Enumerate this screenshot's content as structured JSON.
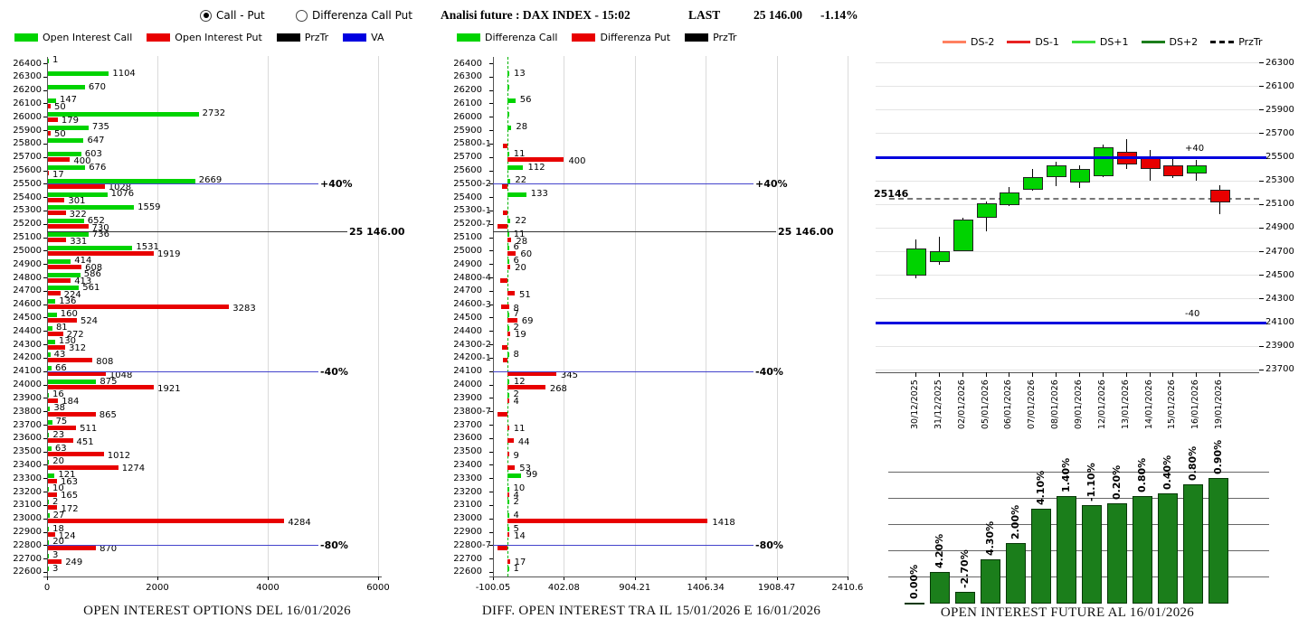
{
  "header": {
    "radio_options": [
      {
        "label": "Call - Put",
        "selected": true
      },
      {
        "label": "Differenza Call Put",
        "selected": false
      }
    ],
    "future_info": {
      "title": "Analisi future : DAX INDEX - 15:02",
      "last_label": "LAST",
      "last_value": "25 146.00",
      "last_change": "-1.14%"
    }
  },
  "legends": {
    "options": [
      {
        "label": "Open Interest Call",
        "color": "#00d300",
        "type": "box"
      },
      {
        "label": "Open Interest Put",
        "color": "#e80000",
        "type": "box"
      },
      {
        "label": "PrzTr",
        "color": "#000000",
        "type": "box"
      },
      {
        "label": "VA",
        "color": "#0000e0",
        "type": "box"
      }
    ],
    "diff": [
      {
        "label": "Differenza Call",
        "color": "#00d300",
        "type": "box"
      },
      {
        "label": "Differenza Put",
        "color": "#e80000",
        "type": "box"
      },
      {
        "label": "PrzTr",
        "color": "#000000",
        "type": "box"
      }
    ],
    "future": [
      {
        "label": "DS-2",
        "color": "#ff8060",
        "type": "line"
      },
      {
        "label": "DS-1",
        "color": "#e82222",
        "type": "line"
      },
      {
        "label": "DS+1",
        "color": "#3ade3a",
        "type": "line"
      },
      {
        "label": "DS+2",
        "color": "#1b7e1b",
        "type": "line"
      },
      {
        "label": "PrzTr",
        "color": "#000000",
        "type": "dash"
      }
    ]
  },
  "chart_data": [
    {
      "id": "open-interest-options",
      "type": "bar",
      "orientation": "horizontal",
      "title": "OPEN INTEREST OPTIONS DEL 16/01/2026",
      "strikes": [
        26400,
        26300,
        26200,
        26100,
        26000,
        25900,
        25800,
        25700,
        25600,
        25500,
        25400,
        25300,
        25200,
        25100,
        25000,
        24900,
        24800,
        24700,
        24600,
        24500,
        24400,
        24300,
        24200,
        24100,
        24000,
        23900,
        23800,
        23700,
        23600,
        23500,
        23400,
        23300,
        23200,
        23100,
        23000,
        22900,
        22800,
        22700,
        22600
      ],
      "series": [
        {
          "name": "Open Interest Call",
          "color": "#00d300",
          "values": [
            1,
            1104,
            670,
            147,
            2732,
            735,
            647,
            603,
            676,
            2669,
            1076,
            1559,
            652,
            736,
            1531,
            414,
            586,
            561,
            136,
            160,
            81,
            130,
            43,
            66,
            875,
            16,
            38,
            75,
            23,
            63,
            20,
            121,
            10,
            2,
            27,
            18,
            20,
            3,
            3
          ]
        },
        {
          "name": "Open Interest Put",
          "color": "#e80000",
          "values": [
            null,
            null,
            null,
            50,
            179,
            50,
            null,
            400,
            17,
            1028,
            301,
            322,
            730,
            331,
            1919,
            608,
            413,
            224,
            3283,
            524,
            272,
            312,
            808,
            1048,
            1921,
            184,
            865,
            511,
            451,
            1012,
            1274,
            163,
            165,
            172,
            4284,
            124,
            870,
            249,
            null
          ]
        }
      ],
      "x_ticks": [
        "0",
        "2000",
        "4000",
        "6000"
      ],
      "xlim": [
        0,
        6000
      ],
      "ref_lines": [
        {
          "label": "+40%",
          "price": 25500,
          "color": "#4444cc"
        },
        {
          "label": "25 146.00",
          "price": 25146,
          "color": "#333333"
        },
        {
          "label": "-40%",
          "price": 24100,
          "color": "#4444cc"
        },
        {
          "label": "-80%",
          "price": 22800,
          "color": "#4444cc"
        }
      ]
    },
    {
      "id": "diff-open-interest",
      "type": "bar",
      "orientation": "horizontal",
      "title": "DIFF. OPEN INTEREST TRA IL 15/01/2026 E 16/01/2026",
      "strikes": [
        26400,
        26300,
        26200,
        26100,
        26000,
        25900,
        25800,
        25700,
        25600,
        25500,
        25400,
        25300,
        25200,
        25100,
        25000,
        24900,
        24800,
        24700,
        24600,
        24500,
        24400,
        24300,
        24200,
        24100,
        24000,
        23900,
        23800,
        23700,
        23600,
        23500,
        23400,
        23300,
        23200,
        23100,
        23000,
        22900,
        22800,
        22700,
        22600
      ],
      "call_diff": {
        "name": "Differenza Call",
        "color": "#00d300",
        "values": [
          0,
          13,
          2,
          56,
          2,
          28,
          0,
          11,
          112,
          22,
          133,
          0,
          22,
          11,
          6,
          6,
          0,
          0,
          0,
          7,
          2,
          0,
          8,
          0,
          12,
          2,
          0,
          0,
          0,
          0,
          0,
          99,
          10,
          2,
          4,
          5,
          0,
          0,
          1
        ],
        "labels": [
          "",
          "13",
          "",
          "56",
          "",
          "28",
          "",
          "11",
          "112",
          "22",
          "133",
          "",
          "22",
          "11",
          "6",
          "6",
          "",
          "",
          "",
          "7",
          "2",
          "",
          "8",
          "",
          "12",
          "2",
          "",
          "",
          "",
          "",
          "",
          "99",
          "10",
          "2",
          "4",
          "5",
          "",
          "",
          "1"
        ]
      },
      "put_diff": {
        "name": "Differenza Put",
        "color": "#e80000",
        "values": [
          0,
          0,
          0,
          0,
          0,
          0,
          0,
          400,
          0,
          0,
          0,
          0,
          0,
          28,
          60,
          20,
          0,
          51,
          8,
          69,
          19,
          0,
          0,
          345,
          268,
          4,
          0,
          11,
          44,
          9,
          53,
          0,
          4,
          0,
          1418,
          14,
          0,
          17,
          0
        ],
        "labels": [
          "",
          "",
          "",
          "",
          "",
          "",
          "",
          "400",
          "",
          "",
          "",
          "",
          "",
          "28",
          "60",
          "20",
          "",
          "51",
          "8",
          "69",
          "19",
          "",
          "",
          "345",
          "268",
          "4",
          "",
          "11",
          "44",
          "9",
          "53",
          "",
          "4",
          "",
          "1418",
          "14",
          "",
          "17",
          ""
        ]
      },
      "neg_diff": {
        "color": "#e80000",
        "values": [
          0,
          0,
          0,
          0,
          0,
          0,
          -1,
          0,
          0,
          -2,
          0,
          -1,
          -7,
          0,
          0,
          0,
          -4,
          0,
          -3,
          0,
          0,
          -2,
          -1,
          0,
          0,
          0,
          -7,
          0,
          0,
          0,
          0,
          0,
          0,
          0,
          0,
          0,
          -7,
          0,
          0
        ],
        "labels": [
          "",
          "",
          "",
          "",
          "",
          "",
          "-1",
          "",
          "",
          "-2",
          "",
          "-1",
          "-7",
          "",
          "",
          "",
          "-4",
          "",
          "-3",
          "",
          "",
          "-2",
          "-1",
          "",
          "",
          "",
          "-7",
          "",
          "",
          "",
          "",
          "",
          "",
          "",
          "",
          "",
          "-7",
          "",
          ""
        ]
      },
      "x_ticks": [
        "-100.05",
        "402.08",
        "904.21",
        "1406.34",
        "1908.47",
        "2410.6"
      ],
      "xlim": [
        -100.05,
        2410.6
      ],
      "ref_lines": [
        {
          "label": "+40%",
          "price": 25500,
          "color": "#4444cc"
        },
        {
          "label": "25 146.00",
          "price": 25146,
          "color": "#333333"
        },
        {
          "label": "-40%",
          "price": 24100,
          "color": "#4444cc"
        },
        {
          "label": "-80%",
          "price": 22800,
          "color": "#4444cc"
        }
      ]
    },
    {
      "id": "future-candles",
      "type": "candlestick",
      "dates": [
        "30/12/2025",
        "31/12/2025",
        "02/01/2026",
        "05/01/2026",
        "06/01/2026",
        "07/01/2026",
        "08/01/2026",
        "09/01/2026",
        "12/01/2026",
        "13/01/2026",
        "14/01/2026",
        "15/01/2026",
        "16/01/2026",
        "19/01/2026"
      ],
      "ohlc": [
        [
          24510,
          24800,
          24470,
          24725
        ],
        [
          24625,
          24820,
          24585,
          24700
        ],
        [
          24720,
          24985,
          24700,
          24965
        ],
        [
          25000,
          25125,
          24870,
          25110
        ],
        [
          25110,
          25245,
          25080,
          25200
        ],
        [
          25235,
          25395,
          25210,
          25330
        ],
        [
          25340,
          25455,
          25255,
          25430
        ],
        [
          25297,
          25430,
          25240,
          25397
        ],
        [
          25350,
          25600,
          25330,
          25580
        ],
        [
          25540,
          25650,
          25400,
          25450
        ],
        [
          25500,
          25560,
          25300,
          25410
        ],
        [
          25428,
          25480,
          25320,
          25351
        ],
        [
          25374,
          25470,
          25300,
          25428
        ],
        [
          25222,
          25260,
          25015,
          25130
        ]
      ],
      "y_ticks": [
        26300,
        26100,
        25900,
        25700,
        25500,
        25300,
        25100,
        24900,
        24700,
        24500,
        24300,
        24100,
        23900,
        23700
      ],
      "ylim": [
        23700,
        26300
      ],
      "legend": [
        "DS-2",
        "DS-1",
        "DS+1",
        "DS+2",
        "PrzTr"
      ],
      "ref_lines": [
        {
          "label": "+40",
          "price": 25500,
          "color": "#0000dd"
        },
        {
          "label": "-40",
          "price": 24100,
          "color": "#0000dd"
        }
      ],
      "prz_line": {
        "label": "25146",
        "price": 25146
      },
      "up_color": "#00d300",
      "down_color": "#e80000"
    },
    {
      "id": "open-interest-future",
      "type": "bar",
      "title": "OPEN INTEREST FUTURE AL 16/01/2026",
      "labels": [
        "0.00%",
        "4.20%",
        "-2.70%",
        "4.30%",
        "2.00%",
        "4.10%",
        "1.40%",
        "-1.10%",
        "0.20%",
        "0.80%",
        "0.40%",
        "0.80%",
        "0.90%"
      ],
      "values_pct": [
        0.0,
        4.2,
        -2.7,
        4.3,
        2.0,
        4.1,
        1.4,
        -1.1,
        0.2,
        0.8,
        0.4,
        0.8,
        0.9
      ],
      "levels": [
        1,
        25,
        9,
        35,
        48,
        75,
        85,
        78,
        79,
        85,
        87,
        94,
        99
      ],
      "bar_color": "#1b7e1b"
    }
  ]
}
